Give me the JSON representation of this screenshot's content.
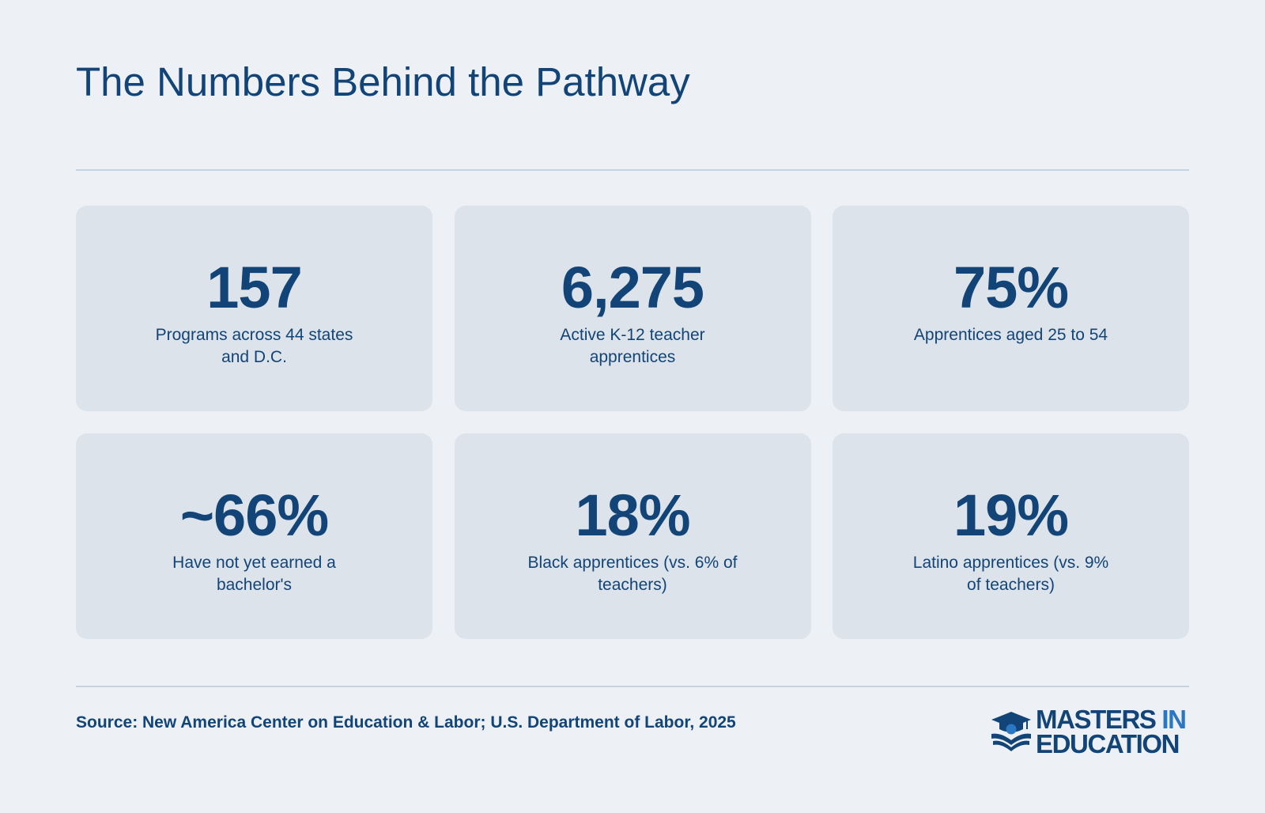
{
  "title": "The Numbers Behind the Pathway",
  "stats": [
    {
      "value": "157",
      "label": "Programs across 44 states and D.C."
    },
    {
      "value": "6,275",
      "label": "Active K-12 teacher apprentices"
    },
    {
      "value": "75%",
      "label": "Apprentices aged 25 to 54"
    },
    {
      "value": "~66%",
      "label": "Have not yet earned a bachelor's"
    },
    {
      "value": "18%",
      "label": "Black apprentices (vs. 6% of teachers)"
    },
    {
      "value": "19%",
      "label": "Latino apprentices (vs. 9% of teachers)"
    }
  ],
  "source": "Source: New America Center on Education & Labor; U.S. Department of Labor, 2025",
  "logo": {
    "line1_dark": "MASTERS",
    "line1_accent": "IN",
    "line2": "EDUCATION",
    "icon": "graduation-cap-book-icon"
  },
  "colors": {
    "background": "#edf1f6",
    "card": "#dce3ea",
    "primary_text": "#134477",
    "accent": "#2a77c3",
    "rule": "#c5d2df"
  }
}
